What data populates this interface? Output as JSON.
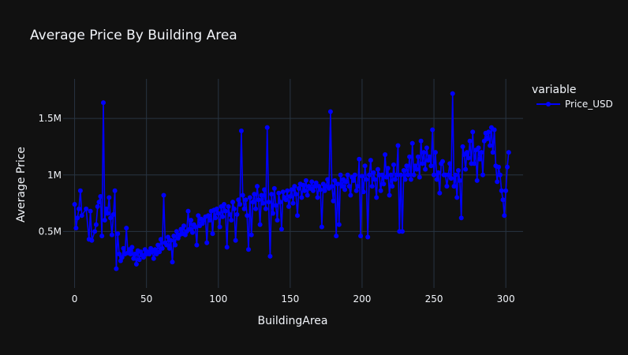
{
  "chart_data": {
    "type": "line",
    "title": "Average Price By Building Area",
    "xlabel": "BuildingArea",
    "ylabel": "Average Price",
    "xlim": [
      -8,
      312
    ],
    "ylim": [
      0,
      1850000
    ],
    "x_ticks": [
      0,
      50,
      100,
      150,
      200,
      250,
      300
    ],
    "x_tick_labels": [
      "0",
      "50",
      "100",
      "150",
      "200",
      "250",
      "300"
    ],
    "y_ticks": [
      500000,
      1000000,
      1500000
    ],
    "y_tick_labels": [
      "0.5M",
      "1M",
      "1.5M"
    ],
    "grid": true,
    "legend": {
      "title": "variable",
      "position": "top-right"
    },
    "series": [
      {
        "name": "Price_USD",
        "color": "#0000ff",
        "marker": "circle",
        "points": [
          [
            0,
            740000
          ],
          [
            1,
            530000
          ],
          [
            2,
            620000
          ],
          [
            3,
            700000
          ],
          [
            4,
            860000
          ],
          [
            5,
            640000
          ],
          [
            8,
            700000
          ],
          [
            10,
            430000
          ],
          [
            11,
            680000
          ],
          [
            12,
            420000
          ],
          [
            14,
            500000
          ],
          [
            15,
            560000
          ],
          [
            16,
            720000
          ],
          [
            17,
            760000
          ],
          [
            18,
            810000
          ],
          [
            19,
            460000
          ],
          [
            20,
            1640000
          ],
          [
            21,
            600000
          ],
          [
            22,
            700000
          ],
          [
            23,
            660000
          ],
          [
            24,
            800000
          ],
          [
            25,
            620000
          ],
          [
            26,
            470000
          ],
          [
            27,
            650000
          ],
          [
            28,
            860000
          ],
          [
            29,
            170000
          ],
          [
            30,
            480000
          ],
          [
            31,
            300000
          ],
          [
            32,
            240000
          ],
          [
            33,
            270000
          ],
          [
            34,
            350000
          ],
          [
            35,
            300000
          ],
          [
            36,
            530000
          ],
          [
            37,
            310000
          ],
          [
            38,
            340000
          ],
          [
            39,
            300000
          ],
          [
            40,
            360000
          ],
          [
            41,
            260000
          ],
          [
            42,
            300000
          ],
          [
            43,
            210000
          ],
          [
            44,
            330000
          ],
          [
            45,
            250000
          ],
          [
            46,
            320000
          ],
          [
            47,
            290000
          ],
          [
            48,
            270000
          ],
          [
            49,
            340000
          ],
          [
            50,
            300000
          ],
          [
            51,
            320000
          ],
          [
            52,
            300000
          ],
          [
            53,
            350000
          ],
          [
            54,
            320000
          ],
          [
            55,
            260000
          ],
          [
            56,
            340000
          ],
          [
            57,
            300000
          ],
          [
            58,
            380000
          ],
          [
            59,
            320000
          ],
          [
            60,
            430000
          ],
          [
            61,
            350000
          ],
          [
            62,
            820000
          ],
          [
            63,
            400000
          ],
          [
            64,
            380000
          ],
          [
            65,
            450000
          ],
          [
            66,
            350000
          ],
          [
            67,
            420000
          ],
          [
            68,
            230000
          ],
          [
            69,
            460000
          ],
          [
            70,
            380000
          ],
          [
            71,
            500000
          ],
          [
            72,
            440000
          ],
          [
            73,
            470000
          ],
          [
            74,
            520000
          ],
          [
            75,
            480000
          ],
          [
            76,
            550000
          ],
          [
            77,
            470000
          ],
          [
            78,
            500000
          ],
          [
            79,
            680000
          ],
          [
            80,
            520000
          ],
          [
            81,
            600000
          ],
          [
            82,
            490000
          ],
          [
            83,
            560000
          ],
          [
            84,
            540000
          ],
          [
            85,
            380000
          ],
          [
            86,
            640000
          ],
          [
            87,
            550000
          ],
          [
            88,
            610000
          ],
          [
            89,
            570000
          ],
          [
            90,
            600000
          ],
          [
            91,
            630000
          ],
          [
            92,
            400000
          ],
          [
            93,
            640000
          ],
          [
            94,
            600000
          ],
          [
            95,
            680000
          ],
          [
            96,
            480000
          ],
          [
            97,
            690000
          ],
          [
            98,
            620000
          ],
          [
            99,
            700000
          ],
          [
            100,
            660000
          ],
          [
            101,
            540000
          ],
          [
            102,
            720000
          ],
          [
            103,
            630000
          ],
          [
            104,
            740000
          ],
          [
            105,
            680000
          ],
          [
            106,
            360000
          ],
          [
            107,
            720000
          ],
          [
            108,
            650000
          ],
          [
            109,
            600000
          ],
          [
            110,
            760000
          ],
          [
            111,
            700000
          ],
          [
            112,
            420000
          ],
          [
            113,
            650000
          ],
          [
            114,
            780000
          ],
          [
            115,
            740000
          ],
          [
            116,
            1390000
          ],
          [
            117,
            820000
          ],
          [
            118,
            700000
          ],
          [
            119,
            780000
          ],
          [
            120,
            640000
          ],
          [
            121,
            340000
          ],
          [
            122,
            800000
          ],
          [
            123,
            470000
          ],
          [
            124,
            760000
          ],
          [
            125,
            830000
          ],
          [
            126,
            700000
          ],
          [
            127,
            900000
          ],
          [
            128,
            780000
          ],
          [
            129,
            560000
          ],
          [
            130,
            820000
          ],
          [
            131,
            750000
          ],
          [
            132,
            870000
          ],
          [
            133,
            700000
          ],
          [
            134,
            1420000
          ],
          [
            135,
            760000
          ],
          [
            136,
            280000
          ],
          [
            137,
            830000
          ],
          [
            138,
            660000
          ],
          [
            139,
            880000
          ],
          [
            140,
            730000
          ],
          [
            141,
            600000
          ],
          [
            142,
            840000
          ],
          [
            143,
            760000
          ],
          [
            144,
            520000
          ],
          [
            145,
            850000
          ],
          [
            146,
            800000
          ],
          [
            147,
            780000
          ],
          [
            148,
            860000
          ],
          [
            149,
            720000
          ],
          [
            150,
            810000
          ],
          [
            151,
            870000
          ],
          [
            152,
            750000
          ],
          [
            153,
            900000
          ],
          [
            154,
            830000
          ],
          [
            155,
            640000
          ],
          [
            156,
            880000
          ],
          [
            157,
            920000
          ],
          [
            158,
            800000
          ],
          [
            159,
            910000
          ],
          [
            160,
            860000
          ],
          [
            161,
            950000
          ],
          [
            162,
            820000
          ],
          [
            163,
            900000
          ],
          [
            164,
            880000
          ],
          [
            165,
            940000
          ],
          [
            166,
            860000
          ],
          [
            167,
            900000
          ],
          [
            168,
            930000
          ],
          [
            169,
            800000
          ],
          [
            170,
            900000
          ],
          [
            171,
            870000
          ],
          [
            172,
            540000
          ],
          [
            173,
            920000
          ],
          [
            174,
            860000
          ],
          [
            175,
            900000
          ],
          [
            176,
            960000
          ],
          [
            177,
            880000
          ],
          [
            178,
            1560000
          ],
          [
            179,
            900000
          ],
          [
            180,
            770000
          ],
          [
            181,
            950000
          ],
          [
            182,
            460000
          ],
          [
            183,
            920000
          ],
          [
            184,
            560000
          ],
          [
            185,
            1000000
          ],
          [
            186,
            900000
          ],
          [
            187,
            960000
          ],
          [
            188,
            870000
          ],
          [
            189,
            940000
          ],
          [
            190,
            1000000
          ],
          [
            191,
            900000
          ],
          [
            192,
            820000
          ],
          [
            193,
            980000
          ],
          [
            194,
            950000
          ],
          [
            195,
            1000000
          ],
          [
            196,
            860000
          ],
          [
            197,
            900000
          ],
          [
            198,
            1140000
          ],
          [
            199,
            460000
          ],
          [
            200,
            990000
          ],
          [
            201,
            850000
          ],
          [
            202,
            1080000
          ],
          [
            203,
            960000
          ],
          [
            204,
            450000
          ],
          [
            205,
            1000000
          ],
          [
            206,
            1130000
          ],
          [
            207,
            900000
          ],
          [
            208,
            1020000
          ],
          [
            209,
            960000
          ],
          [
            210,
            800000
          ],
          [
            211,
            1050000
          ],
          [
            212,
            1000000
          ],
          [
            213,
            860000
          ],
          [
            214,
            1000000
          ],
          [
            215,
            920000
          ],
          [
            216,
            1180000
          ],
          [
            217,
            980000
          ],
          [
            218,
            1060000
          ],
          [
            219,
            820000
          ],
          [
            220,
            1000000
          ],
          [
            221,
            900000
          ],
          [
            222,
            1090000
          ],
          [
            223,
            960000
          ],
          [
            224,
            1000000
          ],
          [
            225,
            1260000
          ],
          [
            226,
            500000
          ],
          [
            227,
            1000000
          ],
          [
            228,
            500000
          ],
          [
            229,
            1040000
          ],
          [
            230,
            960000
          ],
          [
            231,
            1080000
          ],
          [
            232,
            1000000
          ],
          [
            233,
            1160000
          ],
          [
            234,
            960000
          ],
          [
            235,
            1280000
          ],
          [
            236,
            1000000
          ],
          [
            237,
            1080000
          ],
          [
            238,
            1050000
          ],
          [
            239,
            1160000
          ],
          [
            240,
            980000
          ],
          [
            241,
            1300000
          ],
          [
            242,
            1100000
          ],
          [
            243,
            1200000
          ],
          [
            244,
            1050000
          ],
          [
            245,
            1240000
          ],
          [
            246,
            1130000
          ],
          [
            247,
            1160000
          ],
          [
            248,
            1080000
          ],
          [
            249,
            1400000
          ],
          [
            250,
            1000000
          ],
          [
            251,
            1200000
          ],
          [
            252,
            960000
          ],
          [
            253,
            1020000
          ],
          [
            254,
            840000
          ],
          [
            255,
            1100000
          ],
          [
            256,
            1120000
          ],
          [
            257,
            1000000
          ],
          [
            258,
            1000000
          ],
          [
            259,
            900000
          ],
          [
            260,
            1000000
          ],
          [
            261,
            1100000
          ],
          [
            262,
            970000
          ],
          [
            263,
            1720000
          ],
          [
            264,
            900000
          ],
          [
            265,
            1000000
          ],
          [
            266,
            800000
          ],
          [
            267,
            1040000
          ],
          [
            268,
            950000
          ],
          [
            269,
            620000
          ],
          [
            270,
            1250000
          ],
          [
            271,
            1180000
          ],
          [
            272,
            1050000
          ],
          [
            273,
            1200000
          ],
          [
            274,
            1150000
          ],
          [
            275,
            1300000
          ],
          [
            276,
            1100000
          ],
          [
            277,
            1380000
          ],
          [
            278,
            1100000
          ],
          [
            279,
            1220000
          ],
          [
            280,
            950000
          ],
          [
            281,
            1240000
          ],
          [
            282,
            1140000
          ],
          [
            283,
            1200000
          ],
          [
            284,
            1000000
          ],
          [
            285,
            1300000
          ],
          [
            286,
            1370000
          ],
          [
            287,
            1320000
          ],
          [
            288,
            1380000
          ],
          [
            289,
            1260000
          ],
          [
            290,
            1420000
          ],
          [
            291,
            1200000
          ],
          [
            292,
            1400000
          ],
          [
            293,
            1080000
          ],
          [
            294,
            940000
          ],
          [
            295,
            1070000
          ],
          [
            296,
            1000000
          ],
          [
            297,
            860000
          ],
          [
            298,
            780000
          ],
          [
            299,
            640000
          ],
          [
            300,
            860000
          ],
          [
            301,
            1070000
          ],
          [
            302,
            1200000
          ]
        ]
      }
    ]
  }
}
